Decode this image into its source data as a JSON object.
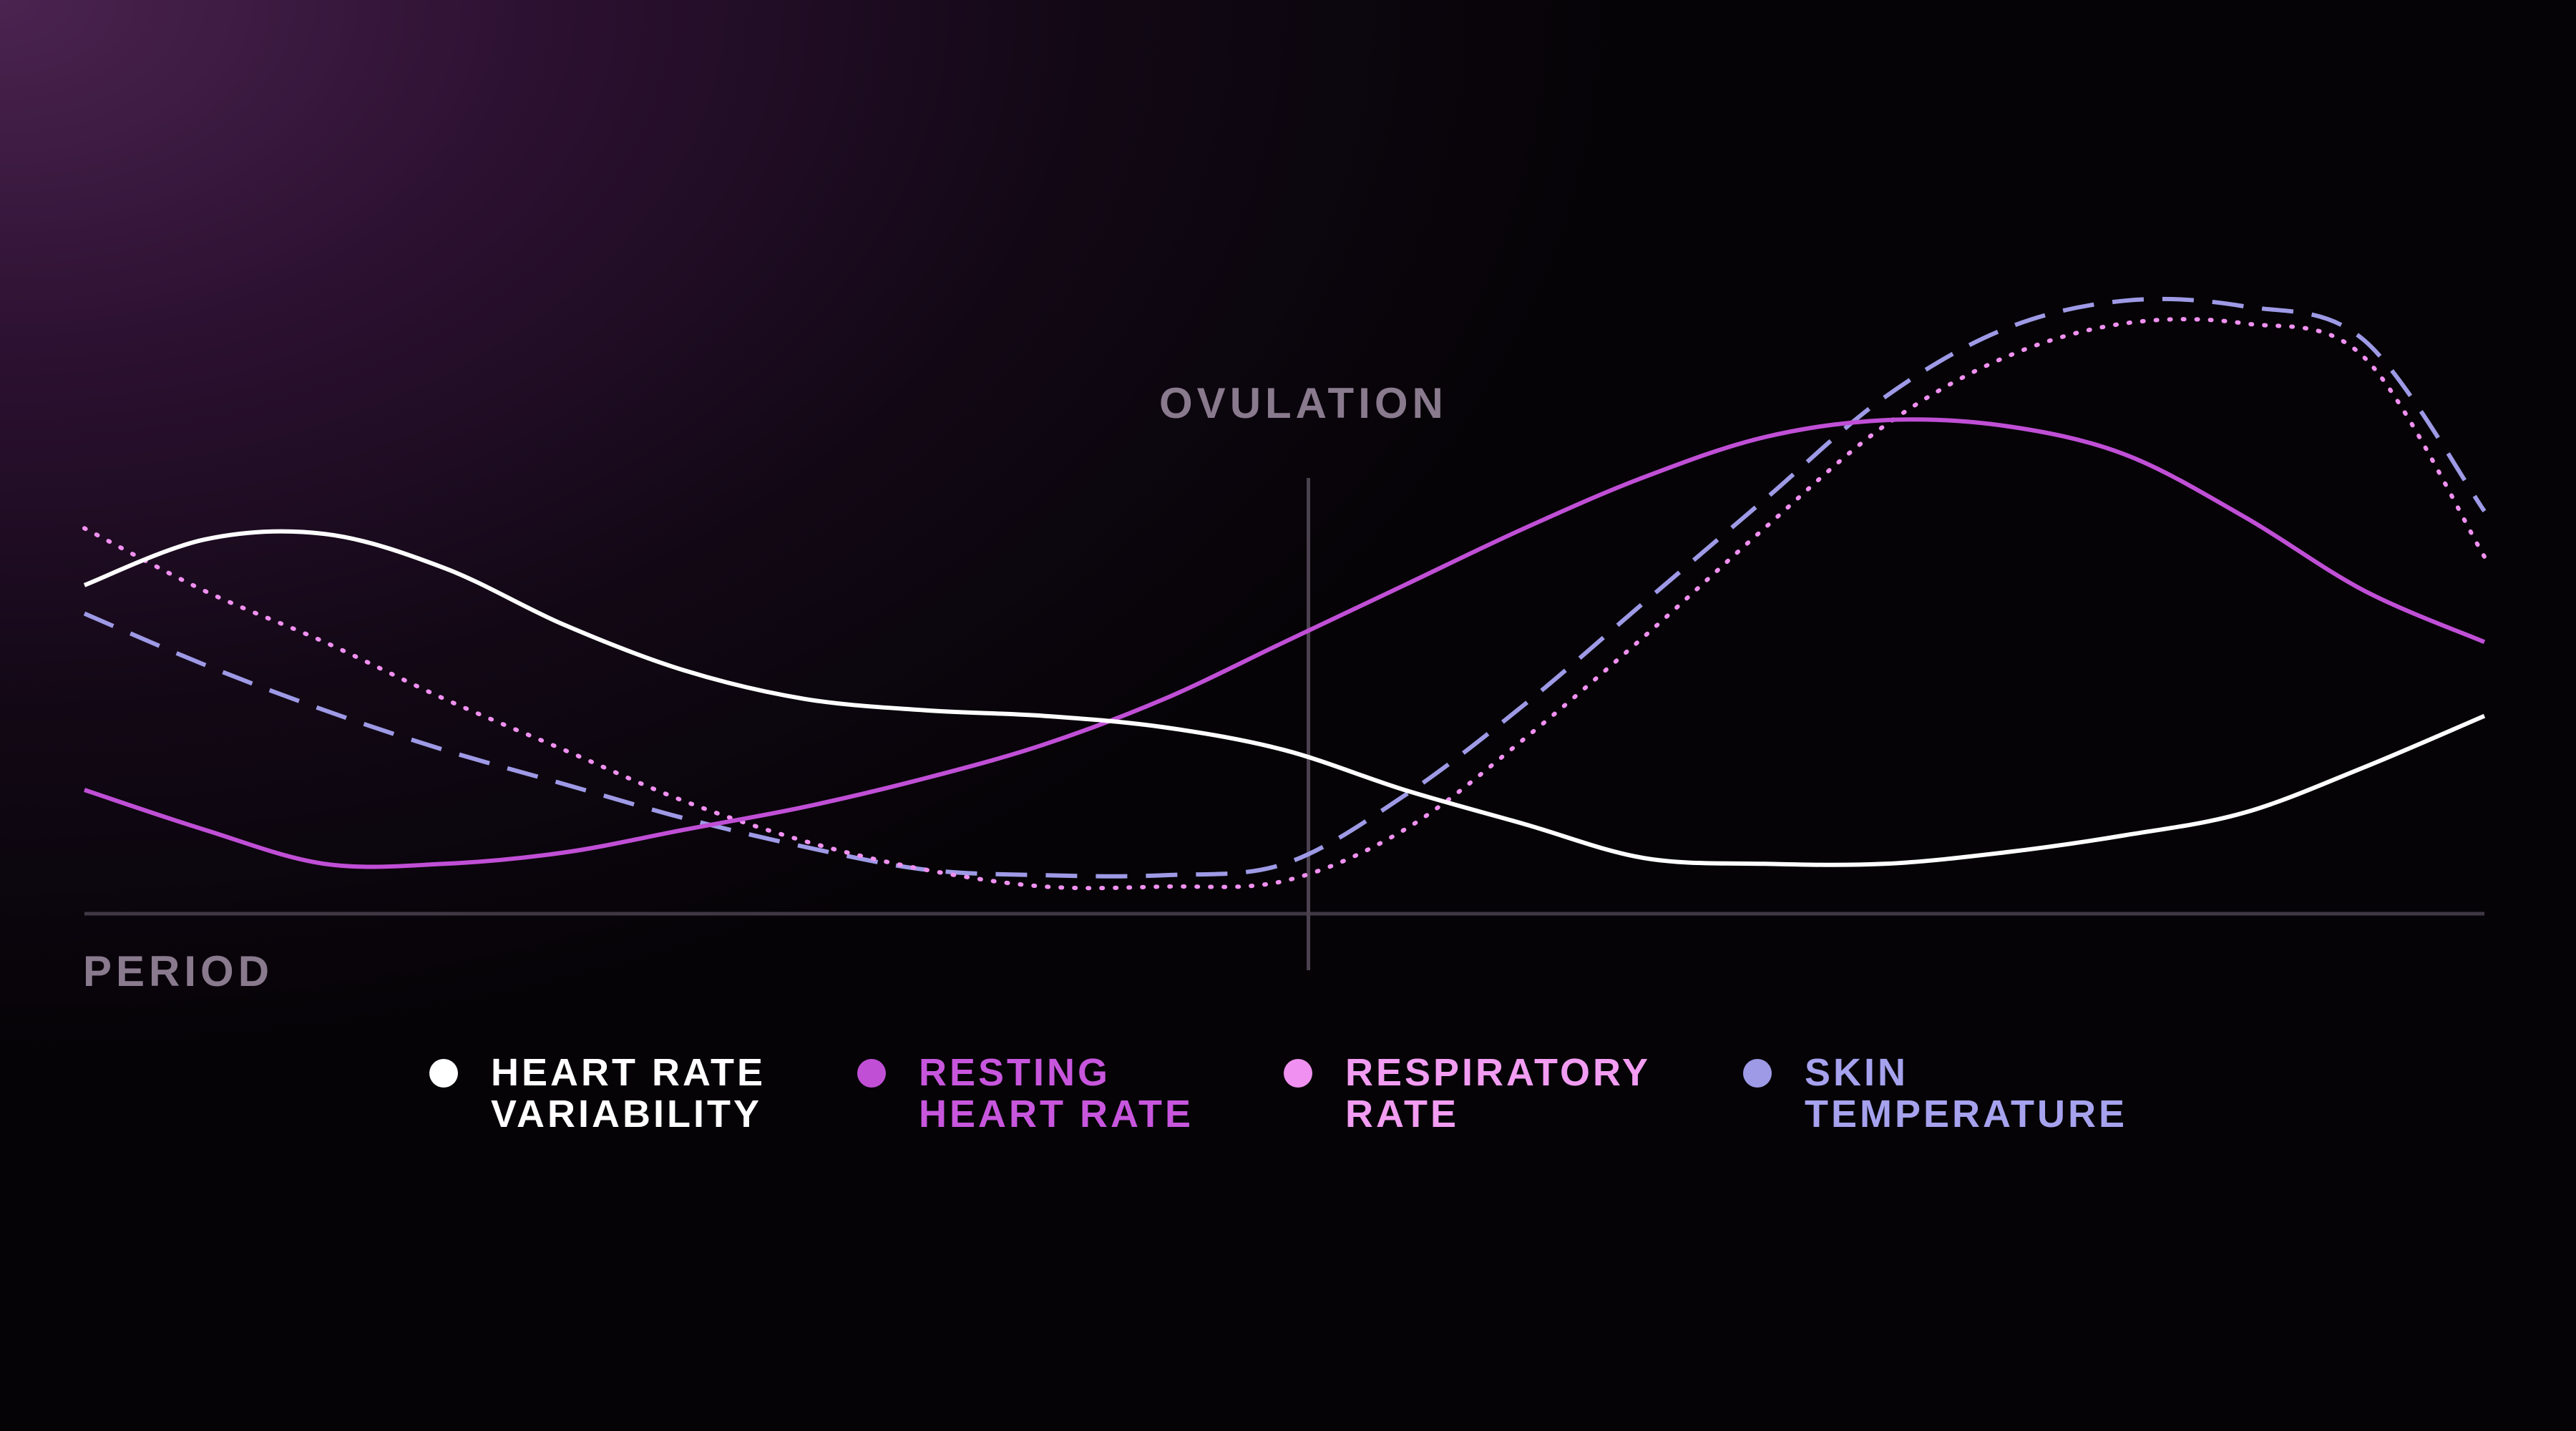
{
  "annotations": {
    "ovulation": "OVULATION",
    "period": "PERIOD"
  },
  "chart_data": {
    "type": "line",
    "title": "",
    "xlabel": "",
    "ylabel": "",
    "x": [
      0,
      5,
      10,
      15,
      20,
      25,
      30,
      35,
      40,
      45,
      50,
      55,
      60,
      65,
      70,
      75,
      80,
      85,
      90,
      95,
      100
    ],
    "xlim": [
      0,
      100
    ],
    "ylim": [
      0,
      100
    ],
    "grid": false,
    "legend_position": "bottom-center",
    "ovulation_x": 51,
    "series": [
      {
        "key": "hrv",
        "name_lines": [
          "HEART RATE",
          "VARIABILITY"
        ],
        "color": "#ffffff",
        "text_color": "#ffffff",
        "style": "solid",
        "values": [
          55,
          63,
          64,
          58,
          48,
          40,
          35,
          33,
          32,
          30,
          26,
          19,
          13,
          7,
          6,
          6,
          8,
          11,
          15,
          23,
          32
        ]
      },
      {
        "key": "rhr",
        "name_lines": [
          "RESTING",
          "HEART RATE"
        ],
        "color": "#c04fd6",
        "text_color": "#c756dd",
        "style": "solid",
        "values": [
          19,
          12,
          6,
          6,
          8,
          12,
          16,
          21,
          27,
          35,
          45,
          55,
          65,
          74,
          81,
          84,
          83,
          78,
          67,
          54,
          45
        ]
      },
      {
        "key": "respiratory",
        "name_lines": [
          "RESPIRATORY",
          "RATE"
        ],
        "color": "#f090f0",
        "text_color": "#f29cf2",
        "style": "dotted",
        "values": [
          65,
          54,
          45,
          35,
          26,
          17,
          10,
          5,
          2,
          2,
          3,
          12,
          28,
          46,
          65,
          83,
          95,
          101,
          101,
          95,
          60
        ]
      },
      {
        "key": "skin",
        "name_lines": [
          "SKIN",
          "TEMPERATURE"
        ],
        "color": "#9e9ae6",
        "text_color": "#a6a2ee",
        "style": "dashed",
        "values": [
          50,
          41,
          33,
          26,
          20,
          14,
          9,
          5,
          4,
          4,
          6,
          18,
          34,
          52,
          70,
          88,
          100,
          105,
          104,
          98,
          68
        ]
      }
    ]
  }
}
